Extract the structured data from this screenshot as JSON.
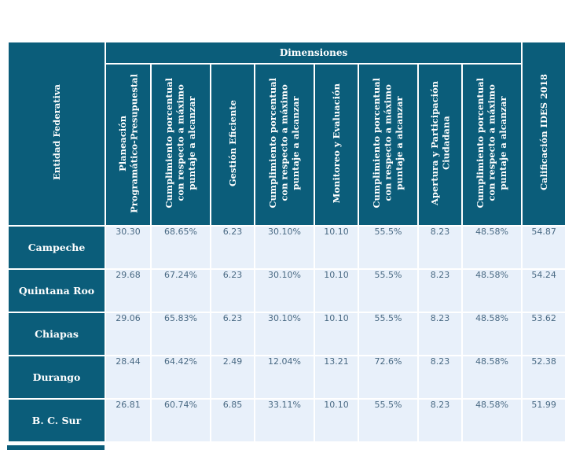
{
  "table": {
    "header_group": "Dimensiones",
    "row_header": "Entidad Federativa",
    "col_headers": [
      [
        "Planeación",
        "Programático-Presupuestal"
      ],
      [
        "Cumplimiento porcentual",
        "con respecto a máximo",
        "puntaje a alcanzar"
      ],
      [
        "Gestión Eficiente"
      ],
      [
        "Cumplimiento porcentual",
        "con respecto a máximo",
        "puntaje a alcanzar"
      ],
      [
        "Monitoreo y Evaluación"
      ],
      [
        "Cumplimiento porcentual",
        "con respecto a máximo",
        "puntaje a alcanzar"
      ],
      [
        "Apertura y Participación",
        "Ciudadana"
      ],
      [
        "Cumplimiento porcentual",
        "con respecto a máximo",
        "puntaje a alcanzar"
      ]
    ],
    "final_header": "Calificación IDES 2018",
    "rows": [
      {
        "entity": "Campeche",
        "values": [
          "30.30",
          "68.65%",
          "6.23",
          "30.10%",
          "10.10",
          "55.5%",
          "8.23",
          "48.58%",
          "54.87"
        ]
      },
      {
        "entity": "Quintana Roo",
        "values": [
          "29.68",
          "67.24%",
          "6.23",
          "30.10%",
          "10.10",
          "55.5%",
          "8.23",
          "48.58%",
          "54.24"
        ]
      },
      {
        "entity": "Chiapas",
        "values": [
          "29.06",
          "65.83%",
          "6.23",
          "30.10%",
          "10.10",
          "55.5%",
          "8.23",
          "48.58%",
          "53.62"
        ]
      },
      {
        "entity": "Durango",
        "values": [
          "28.44",
          "64.42%",
          "2.49",
          "12.04%",
          "13.21",
          "72.6%",
          "8.23",
          "48.58%",
          "52.38"
        ]
      },
      {
        "entity": "B. C. Sur",
        "values": [
          "26.81",
          "60.74%",
          "6.85",
          "33.11%",
          "10.10",
          "55.5%",
          "8.23",
          "48.58%",
          "51.99"
        ]
      }
    ]
  }
}
